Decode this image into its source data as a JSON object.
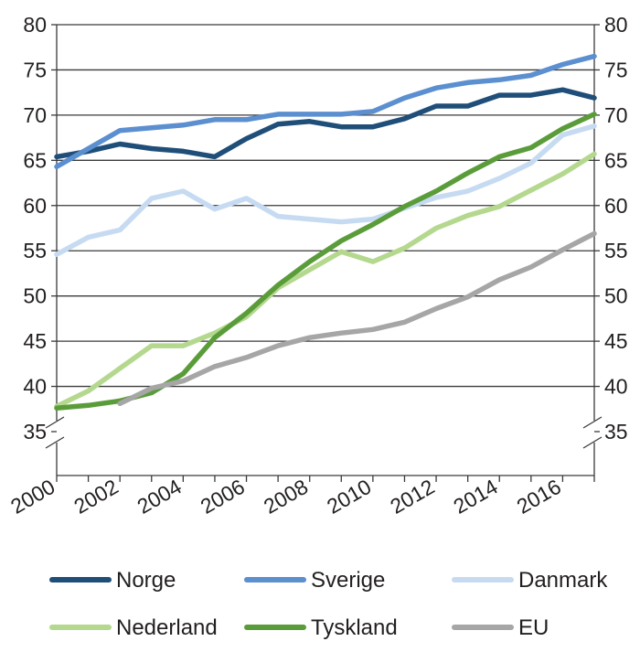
{
  "chart_data": {
    "type": "line",
    "title": "",
    "xlabel": "",
    "ylabel": "",
    "x": [
      2000,
      2001,
      2002,
      2003,
      2004,
      2005,
      2006,
      2007,
      2008,
      2009,
      2010,
      2011,
      2012,
      2013,
      2014,
      2015,
      2016,
      2017
    ],
    "x_tick_labels": [
      "2000",
      "2002",
      "2004",
      "2006",
      "2008",
      "2010",
      "2012",
      "2014",
      "2016"
    ],
    "y_tick_labels": [
      "35",
      "40",
      "45",
      "50",
      "55",
      "60",
      "65",
      "70",
      "75",
      "80"
    ],
    "ylim": [
      35,
      80
    ],
    "axis_break": true,
    "grid": true,
    "legend_placement": "bottom",
    "series": [
      {
        "name": "Norge",
        "color": "#1f4e79",
        "values": [
          65.4,
          66.0,
          66.8,
          66.3,
          66.0,
          65.4,
          67.4,
          69.0,
          69.3,
          68.7,
          68.7,
          69.6,
          71.0,
          71.0,
          72.2,
          72.2,
          72.8,
          71.9
        ]
      },
      {
        "name": "Sverige",
        "color": "#5b8fd0",
        "values": [
          64.3,
          66.3,
          68.3,
          68.6,
          68.9,
          69.5,
          69.5,
          70.1,
          70.1,
          70.1,
          70.4,
          71.9,
          73.0,
          73.6,
          73.9,
          74.4,
          75.6,
          76.5
        ]
      },
      {
        "name": "Danmark",
        "color": "#c6dbf2",
        "values": [
          54.6,
          56.5,
          57.3,
          60.8,
          61.6,
          59.6,
          60.8,
          58.8,
          58.5,
          58.2,
          58.5,
          59.7,
          60.9,
          61.6,
          63.0,
          64.7,
          67.8,
          68.8
        ]
      },
      {
        "name": "Nederland",
        "color": "#b4d88e",
        "values": [
          37.8,
          39.5,
          42.0,
          44.5,
          44.5,
          45.9,
          47.7,
          50.9,
          52.9,
          54.9,
          53.8,
          55.3,
          57.5,
          58.9,
          59.9,
          61.7,
          63.5,
          65.7
        ]
      },
      {
        "name": "Tyskland",
        "color": "#5b9c3a",
        "values": [
          37.6,
          37.9,
          38.4,
          39.3,
          41.4,
          45.4,
          48.1,
          51.2,
          53.8,
          56.1,
          57.9,
          59.9,
          61.6,
          63.6,
          65.4,
          66.4,
          68.5,
          70.1
        ]
      },
      {
        "name": "EU",
        "color": "#a6a6a6",
        "values": [
          null,
          null,
          38.1,
          39.8,
          40.6,
          42.2,
          43.2,
          44.5,
          45.4,
          45.9,
          46.3,
          47.1,
          48.6,
          49.9,
          51.8,
          53.2,
          55.1,
          56.9
        ]
      }
    ]
  }
}
